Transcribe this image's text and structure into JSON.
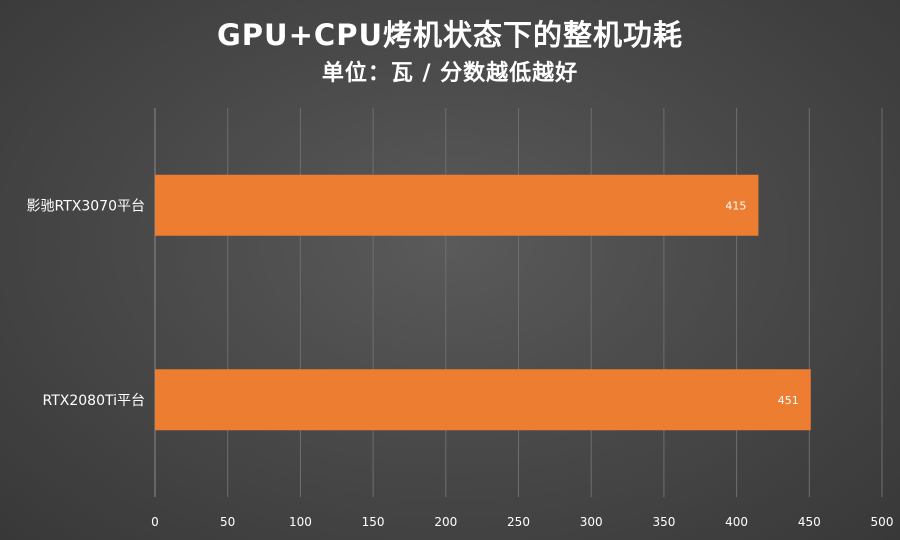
{
  "chart_data": {
    "type": "bar",
    "orientation": "horizontal",
    "title": "GPU+CPU烤机状态下的整机功耗",
    "subtitle": "单位：瓦 / 分数越低越好",
    "categories": [
      "影驰RTX3070平台",
      "RTX2080Ti平台"
    ],
    "values": [
      415,
      451
    ],
    "xlim": [
      0,
      500
    ],
    "xticks": [
      0,
      50,
      100,
      150,
      200,
      250,
      300,
      350,
      400,
      450,
      500
    ],
    "grid": true,
    "legend": "none",
    "bar_color": "#ED7D31"
  }
}
